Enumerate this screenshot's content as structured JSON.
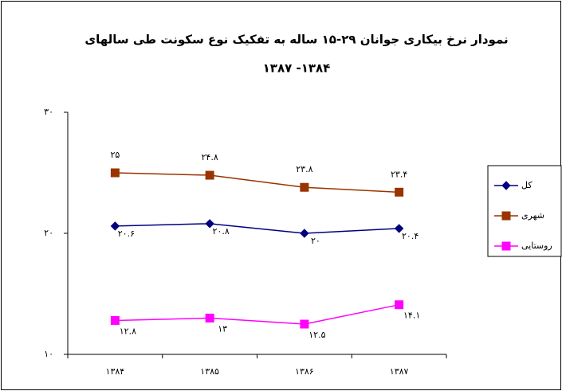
{
  "chart_data": {
    "type": "line",
    "title": [
      "نمودار نرخ بیکاری جوانان ۲۹-۱۵ ساله به تفکیک نوع سکونت طی سالهای",
      "۱۳۸۴- ۱۳۸۷"
    ],
    "categories": [
      "۱۳۸۴",
      "۱۳۸۵",
      "۱۳۸۶",
      "۱۳۸۷"
    ],
    "series": [
      {
        "name": "کل",
        "color": "#000080",
        "marker": "diamond",
        "values": [
          20.6,
          20.8,
          20,
          20.4
        ],
        "value_labels": [
          "۲۰.۶",
          "۲۰.۸",
          "۲۰",
          "۲۰.۴"
        ]
      },
      {
        "name": "شهری",
        "color": "#993300",
        "marker": "square",
        "values": [
          25,
          24.8,
          23.8,
          23.4
        ],
        "value_labels": [
          "۲۵",
          "۲۴.۸",
          "۲۳.۸",
          "۲۳.۴"
        ]
      },
      {
        "name": "روستایی",
        "color": "#ff00ff",
        "marker": "square",
        "values": [
          12.8,
          13,
          12.5,
          14.1
        ],
        "value_labels": [
          "۱۲.۸",
          "۱۳",
          "۱۲.۵",
          "۱۴.۱"
        ]
      }
    ],
    "ylim": [
      10,
      30
    ],
    "yticks": [
      {
        "value": 10,
        "label": "۱۰"
      },
      {
        "value": 20,
        "label": "۲۰"
      },
      {
        "value": 30,
        "label": "۳۰"
      }
    ],
    "grid": false,
    "legend": "right"
  }
}
